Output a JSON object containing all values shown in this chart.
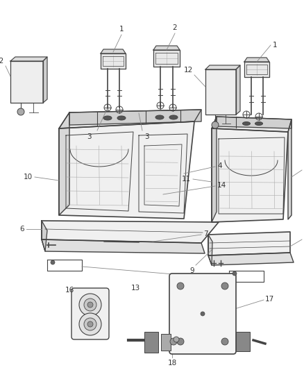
{
  "bg_color": "#ffffff",
  "line_color": "#444444",
  "shadow_color": "#aaaaaa",
  "callout_color": "#888888",
  "label_color": "#333333",
  "figsize": [
    4.38,
    5.33
  ],
  "dpi": 100
}
